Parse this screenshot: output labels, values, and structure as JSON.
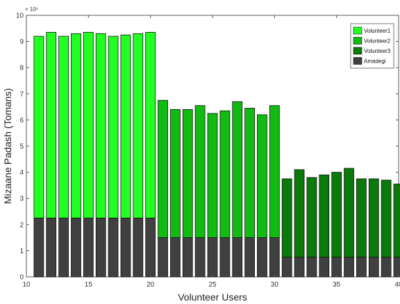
{
  "chart_data": {
    "type": "bar",
    "stacked": true,
    "title": "",
    "xlabel": "Volunteer Users",
    "ylabel": "Mizaane Padash (Tomans)",
    "y_exponent": "× 10⁶",
    "xlim": [
      10,
      40
    ],
    "ylim": [
      0,
      10
    ],
    "xticks": [
      "10",
      "15",
      "20",
      "25",
      "30",
      "35",
      "40"
    ],
    "yticks": [
      "0",
      "1",
      "2",
      "3",
      "4",
      "5",
      "6",
      "7",
      "8",
      "9",
      "10"
    ],
    "legend_position": "top-right",
    "x": [
      11,
      12,
      13,
      14,
      15,
      16,
      17,
      18,
      19,
      20,
      21,
      22,
      23,
      24,
      25,
      26,
      27,
      28,
      29,
      30,
      31,
      32,
      33,
      34,
      35,
      36,
      37,
      38,
      39,
      40
    ],
    "series": [
      {
        "name": "Volunteer1",
        "color": "#22ff22",
        "values": [
          6.95,
          7.1,
          6.95,
          7.05,
          7.1,
          7.05,
          6.95,
          7.0,
          7.05,
          7.1,
          0,
          0,
          0,
          0,
          0,
          0,
          0,
          0,
          0,
          0,
          0,
          0,
          0,
          0,
          0,
          0,
          0,
          0,
          0,
          0
        ]
      },
      {
        "name": "Volunteer2",
        "color": "#11bb11",
        "values": [
          0,
          0,
          0,
          0,
          0,
          0,
          0,
          0,
          0,
          0,
          5.25,
          4.9,
          4.9,
          5.05,
          4.75,
          4.85,
          5.2,
          4.95,
          4.7,
          5.05,
          0,
          0,
          0,
          0,
          0,
          0,
          0,
          0,
          0,
          0
        ]
      },
      {
        "name": "Volunteer3",
        "color": "#0a7a0a",
        "values": [
          0,
          0,
          0,
          0,
          0,
          0,
          0,
          0,
          0,
          0,
          0,
          0,
          0,
          0,
          0,
          0,
          0,
          0,
          0,
          0,
          3.0,
          3.35,
          3.05,
          3.15,
          3.25,
          3.4,
          3.0,
          3.0,
          2.95,
          2.8
        ]
      },
      {
        "name": "Amadegi",
        "color": "#404040",
        "values": [
          2.25,
          2.25,
          2.25,
          2.25,
          2.25,
          2.25,
          2.25,
          2.25,
          2.25,
          2.25,
          1.5,
          1.5,
          1.5,
          1.5,
          1.5,
          1.5,
          1.5,
          1.5,
          1.5,
          1.5,
          0.75,
          0.75,
          0.75,
          0.75,
          0.75,
          0.75,
          0.75,
          0.75,
          0.75,
          0.75
        ]
      }
    ]
  }
}
